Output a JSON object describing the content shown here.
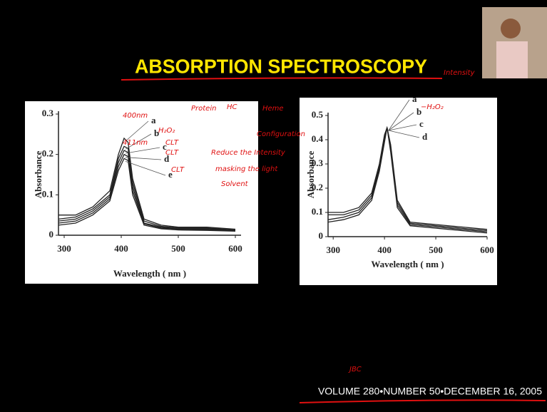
{
  "title": "ABSORPTION SPECTROSCOPY",
  "footer": "VOLUME 280•NUMBER 50•DECEMBER 16, 2005",
  "annotations": [
    "400nm",
    "411nm",
    "H₂O₂",
    "CLT",
    "CLT",
    "CLT",
    "Protein",
    "HC",
    "Heme",
    "Configuration",
    "Reduce the Intensity",
    "masking the light",
    "Solvent",
    "Intensity",
    "−H₂O₂",
    "JBC"
  ],
  "chart_data": [
    {
      "type": "line",
      "xlabel": "Wavelength ( nm )",
      "ylabel": "Absorbance",
      "x": [
        290,
        320,
        350,
        380,
        395,
        405,
        412,
        420,
        440,
        470,
        500,
        550,
        600
      ],
      "xlim": [
        290,
        610
      ],
      "xticks": [
        300,
        400,
        500,
        600
      ],
      "ylim": [
        0,
        0.3
      ],
      "yticks": [
        0,
        0.1,
        0.2,
        0.3
      ],
      "series": [
        {
          "name": "a",
          "color": "#222222",
          "values": [
            0.05,
            0.05,
            0.07,
            0.11,
            0.2,
            0.24,
            0.23,
            0.14,
            0.04,
            0.025,
            0.02,
            0.02,
            0.015
          ]
        },
        {
          "name": "b",
          "color": "#222222",
          "values": [
            0.04,
            0.045,
            0.065,
            0.1,
            0.19,
            0.22,
            0.215,
            0.13,
            0.035,
            0.022,
            0.018,
            0.018,
            0.013
          ]
        },
        {
          "name": "c",
          "color": "#222222",
          "values": [
            0.035,
            0.04,
            0.06,
            0.095,
            0.18,
            0.21,
            0.205,
            0.12,
            0.03,
            0.02,
            0.016,
            0.016,
            0.012
          ]
        },
        {
          "name": "d",
          "color": "#222222",
          "values": [
            0.03,
            0.035,
            0.055,
            0.09,
            0.17,
            0.2,
            0.195,
            0.11,
            0.028,
            0.018,
            0.015,
            0.014,
            0.011
          ]
        },
        {
          "name": "e",
          "color": "#222222",
          "values": [
            0.025,
            0.03,
            0.05,
            0.085,
            0.16,
            0.19,
            0.185,
            0.1,
            0.025,
            0.016,
            0.013,
            0.012,
            0.01
          ]
        }
      ]
    },
    {
      "type": "line",
      "xlabel": "Wavelength ( nm )",
      "ylabel": "Absorbance",
      "x": [
        290,
        320,
        350,
        375,
        390,
        400,
        405,
        412,
        425,
        450,
        500,
        550,
        600
      ],
      "xlim": [
        290,
        600
      ],
      "xticks": [
        300,
        400,
        500,
        600
      ],
      "ylim": [
        0,
        0.5
      ],
      "yticks": [
        0,
        0.1,
        0.2,
        0.3,
        0.4,
        0.5
      ],
      "series": [
        {
          "name": "a",
          "color": "#222222",
          "values": [
            0.1,
            0.1,
            0.12,
            0.18,
            0.3,
            0.42,
            0.45,
            0.38,
            0.15,
            0.06,
            0.05,
            0.04,
            0.03
          ]
        },
        {
          "name": "b",
          "color": "#222222",
          "values": [
            0.09,
            0.09,
            0.11,
            0.17,
            0.29,
            0.41,
            0.45,
            0.37,
            0.14,
            0.055,
            0.045,
            0.035,
            0.025
          ]
        },
        {
          "name": "c",
          "color": "#222222",
          "values": [
            0.07,
            0.08,
            0.1,
            0.16,
            0.28,
            0.4,
            0.45,
            0.36,
            0.13,
            0.05,
            0.04,
            0.03,
            0.02
          ]
        },
        {
          "name": "d",
          "color": "#222222",
          "values": [
            0.06,
            0.07,
            0.09,
            0.15,
            0.27,
            0.39,
            0.45,
            0.35,
            0.12,
            0.045,
            0.035,
            0.025,
            0.015
          ]
        }
      ]
    }
  ]
}
